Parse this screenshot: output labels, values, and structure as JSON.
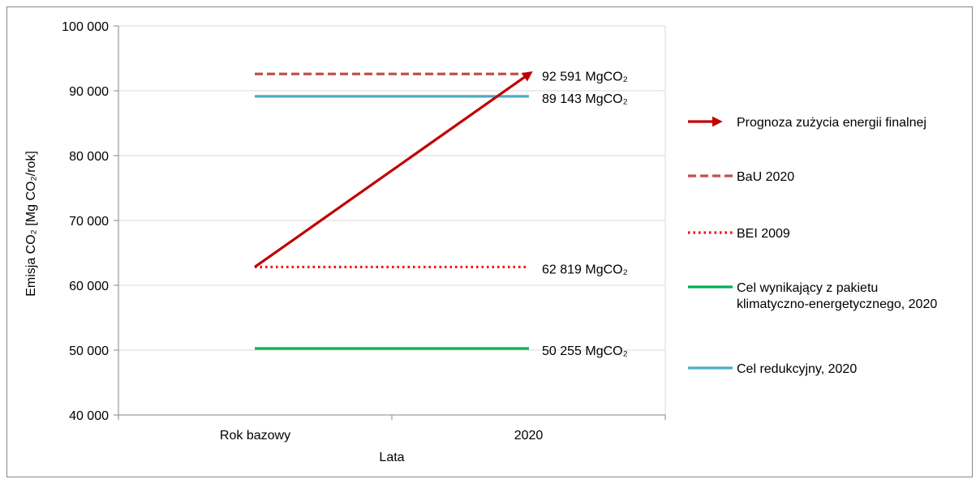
{
  "chart_data": {
    "type": "line",
    "xlabel": "Lata",
    "ylabel": "Emisja CO₂ [Mg CO₂/rok]",
    "categories": [
      "Rok bazowy",
      "2020"
    ],
    "ylim": [
      40000,
      100000
    ],
    "y_ticks": [
      40000,
      50000,
      60000,
      70000,
      80000,
      90000,
      100000
    ],
    "y_tick_labels": [
      "40 000",
      "50 000",
      "60 000",
      "70 000",
      "80 000",
      "90 000",
      "100 000"
    ],
    "grid": "horizontal",
    "legend_position": "right",
    "series": [
      {
        "name": "Prognoza zużycia energii finalnej",
        "values": [
          62819,
          92591
        ],
        "color": "#c00000",
        "style": "arrow"
      },
      {
        "name": "BaU 2020",
        "values": [
          92591,
          92591
        ],
        "color": "#c0504d",
        "style": "dashed"
      },
      {
        "name": "BEI 2009",
        "values": [
          62819,
          62819
        ],
        "color": "#ff0000",
        "style": "dotted"
      },
      {
        "name": "Cel wynikający z pakietu klimatyczno-energetycznego, 2020",
        "values": [
          50255,
          50255
        ],
        "color": "#00b050",
        "style": "solid"
      },
      {
        "name": "Cel redukcyjny, 2020",
        "values": [
          89143,
          89143
        ],
        "color": "#4bacc6",
        "style": "solid"
      }
    ],
    "annotations": [
      {
        "value": 92591,
        "text": "92 591 MgCO₂"
      },
      {
        "value": 89143,
        "text": "89 143 MgCO₂"
      },
      {
        "value": 62819,
        "text": "62 819 MgCO₂"
      },
      {
        "value": 50255,
        "text": "50 255 MgCO₂"
      }
    ]
  }
}
